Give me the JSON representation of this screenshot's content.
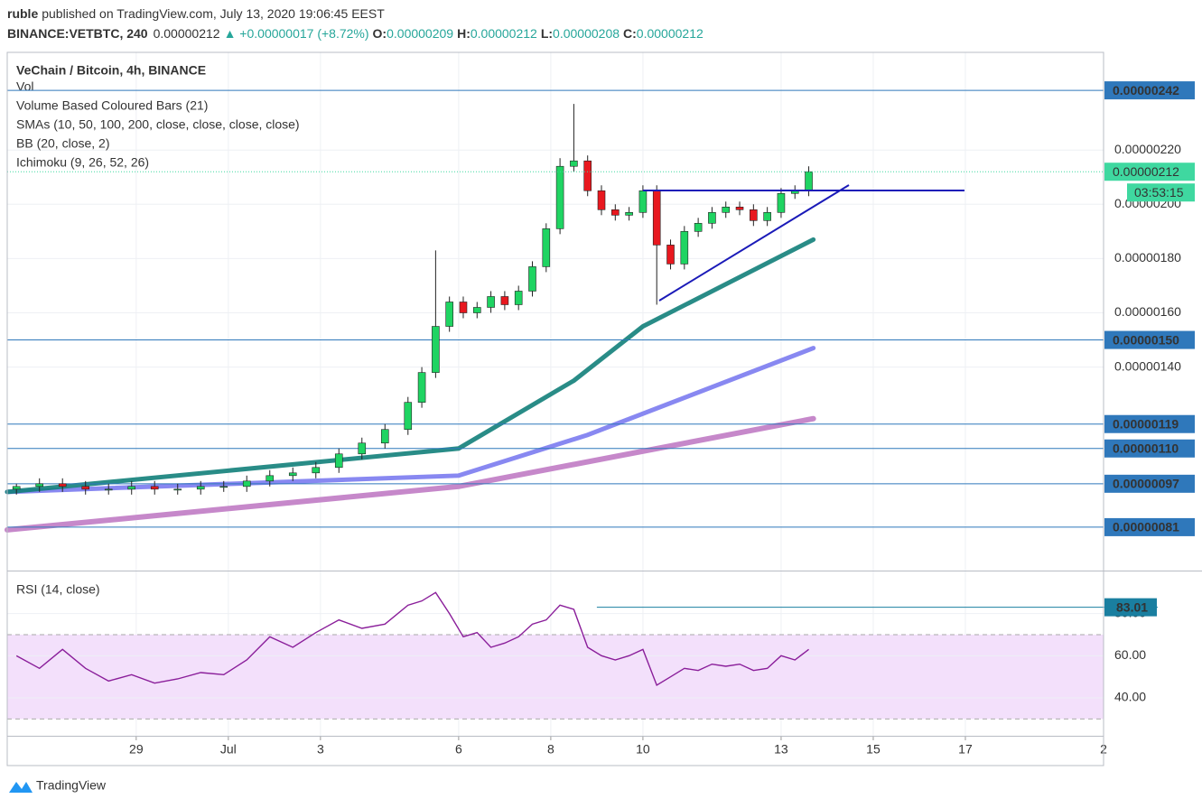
{
  "header": {
    "author": "ruble",
    "published": "published on TradingView.com, July 13, 2020 19:06:45 EEST",
    "symbol": "BINANCE:VETBTC, 240",
    "price": "0.00000212",
    "change": "▲ +0.00000017 (+8.72%)",
    "ohlc": [
      {
        "label": "O:",
        "value": "0.00000209"
      },
      {
        "label": "H:",
        "value": "0.00000212"
      },
      {
        "label": "L:",
        "value": "0.00000208"
      },
      {
        "label": "C:",
        "value": "0.00000212"
      }
    ]
  },
  "footer": {
    "brand": "TradingView"
  },
  "chart_data": [
    {
      "type": "candlestick",
      "title": "VeChain / Bitcoin, 4h, BINANCE",
      "legend_lines": [
        "Vol",
        "Volume Based Coloured Bars (21)",
        "SMAs (10, 50, 100, 200, close, close, close, close)",
        "BB (20, close, 2)",
        "Ichimoku (9, 26, 52, 26)"
      ],
      "up_color": "#1fd462",
      "down_color": "#e8181f",
      "x": [
        26.4,
        26.9,
        27.4,
        27.9,
        28.4,
        28.9,
        29.4,
        29.9,
        30.4,
        30.9,
        31.4,
        31.9,
        32.4,
        32.9,
        33.4,
        33.9,
        34.4,
        34.9,
        35.2,
        35.5,
        35.8,
        36.1,
        36.4,
        36.7,
        37.0,
        37.3,
        37.6,
        37.9,
        38.2,
        38.5,
        38.8,
        39.1,
        39.4,
        39.7,
        40.0,
        40.3,
        40.6,
        40.9,
        41.2,
        41.5,
        41.8,
        42.1,
        42.4,
        42.7,
        43.0,
        43.3,
        43.6
      ],
      "open": [
        9.5e-07,
        9.6e-07,
        9.7e-07,
        9.6e-07,
        9.5e-07,
        9.5e-07,
        9.6e-07,
        9.5e-07,
        9.5e-07,
        9.6e-07,
        9.6e-07,
        9.8e-07,
        1e-06,
        1.01e-06,
        1.03e-06,
        1.08e-06,
        1.12e-06,
        1.17e-06,
        1.27e-06,
        1.38e-06,
        1.55e-06,
        1.64e-06,
        1.6e-06,
        1.62e-06,
        1.66e-06,
        1.63e-06,
        1.68e-06,
        1.77e-06,
        1.91e-06,
        2.14e-06,
        2.16e-06,
        2.05e-06,
        1.98e-06,
        1.96e-06,
        1.97e-06,
        2.05e-06,
        1.85e-06,
        1.78e-06,
        1.9e-06,
        1.93e-06,
        1.97e-06,
        1.99e-06,
        1.98e-06,
        1.94e-06,
        1.97e-06,
        2.04e-06,
        2.05e-06
      ],
      "high": [
        9.7e-07,
        9.9e-07,
        9.9e-07,
        9.8e-07,
        9.7e-07,
        9.8e-07,
        9.8e-07,
        9.7e-07,
        9.8e-07,
        9.8e-07,
        1e-06,
        1.02e-06,
        1.03e-06,
        1.05e-06,
        1.1e-06,
        1.14e-06,
        1.19e-06,
        1.29e-06,
        1.4e-06,
        1.83e-06,
        1.66e-06,
        1.66e-06,
        1.64e-06,
        1.68e-06,
        1.68e-06,
        1.7e-06,
        1.79e-06,
        1.93e-06,
        2.17e-06,
        2.37e-06,
        2.18e-06,
        2.07e-06,
        2e-06,
        1.99e-06,
        2.07e-06,
        2.07e-06,
        1.87e-06,
        1.92e-06,
        1.95e-06,
        1.99e-06,
        2.01e-06,
        2.01e-06,
        2e-06,
        1.99e-06,
        2.06e-06,
        2.07e-06,
        2.14e-06
      ],
      "low": [
        9.3e-07,
        9.4e-07,
        9.4e-07,
        9.3e-07,
        9.3e-07,
        9.3e-07,
        9.3e-07,
        9.3e-07,
        9.3e-07,
        9.4e-07,
        9.4e-07,
        9.6e-07,
        9.8e-07,
        9.9e-07,
        1.01e-06,
        1.06e-06,
        1.1e-06,
        1.15e-06,
        1.25e-06,
        1.36e-06,
        1.53e-06,
        1.58e-06,
        1.58e-06,
        1.6e-06,
        1.61e-06,
        1.61e-06,
        1.66e-06,
        1.75e-06,
        1.89e-06,
        2.12e-06,
        2.03e-06,
        1.96e-06,
        1.94e-06,
        1.94e-06,
        1.95e-06,
        1.63e-06,
        1.76e-06,
        1.76e-06,
        1.88e-06,
        1.91e-06,
        1.95e-06,
        1.96e-06,
        1.92e-06,
        1.92e-06,
        1.95e-06,
        2.02e-06,
        2.03e-06
      ],
      "close": [
        9.6e-07,
        9.7e-07,
        9.6e-07,
        9.5e-07,
        9.5e-07,
        9.6e-07,
        9.5e-07,
        9.5e-07,
        9.6e-07,
        9.6e-07,
        9.8e-07,
        1e-06,
        1.01e-06,
        1.03e-06,
        1.08e-06,
        1.12e-06,
        1.17e-06,
        1.27e-06,
        1.38e-06,
        1.55e-06,
        1.64e-06,
        1.6e-06,
        1.62e-06,
        1.66e-06,
        1.63e-06,
        1.68e-06,
        1.77e-06,
        1.91e-06,
        2.14e-06,
        2.16e-06,
        2.05e-06,
        1.98e-06,
        1.96e-06,
        1.97e-06,
        2.05e-06,
        1.85e-06,
        1.78e-06,
        1.9e-06,
        1.93e-06,
        1.97e-06,
        1.99e-06,
        1.98e-06,
        1.94e-06,
        1.97e-06,
        2.04e-06,
        2.05e-06,
        2.12e-06
      ],
      "overlays": [
        {
          "color": "#c07bc4",
          "width": 6,
          "x": [
            26.2,
            36,
            43.7
          ],
          "values": [
            8e-07,
            9.6e-07,
            1.21e-06
          ]
        },
        {
          "color": "#7b7bf0",
          "width": 5,
          "x": [
            26.2,
            36,
            38.8,
            43.7
          ],
          "values": [
            9.4e-07,
            1e-06,
            1.15e-06,
            1.47e-06
          ]
        },
        {
          "color": "#12807a",
          "width": 5,
          "x": [
            26.2,
            36,
            38.5,
            40,
            43.7
          ],
          "values": [
            9.4e-07,
            1.1e-06,
            1.35e-06,
            1.55e-06,
            1.87e-06
          ]
        }
      ],
      "xlim": [
        26.2,
        50
      ],
      "xticks": [
        29,
        {
          "value": 31,
          "label": "Jul"
        },
        {
          "value": 33,
          "label": "3"
        },
        {
          "value": 36,
          "label": "6"
        },
        {
          "value": 38,
          "label": "8"
        },
        {
          "value": 40,
          "label": "10"
        },
        {
          "value": 43,
          "label": "13"
        },
        {
          "value": 45,
          "label": "15"
        },
        {
          "value": 47,
          "label": "17"
        },
        {
          "value": 50,
          "label": "2"
        }
      ],
      "ylim": [
        6.5e-07,
        2.56e-06
      ],
      "yticks": [
        {
          "value": 1.4e-06,
          "label": "0.00000140"
        },
        {
          "value": 1.6e-06,
          "label": "0.00000160"
        },
        {
          "value": 1.8e-06,
          "label": "0.00000180"
        },
        {
          "value": 2e-06,
          "label": "0.00000200"
        },
        {
          "value": 2.2e-06,
          "label": "0.00000220"
        }
      ],
      "levels": [
        {
          "value": 2.42e-06,
          "label": "0.00000242"
        },
        {
          "value": 1.5e-06,
          "label": "0.00000150"
        },
        {
          "value": 1.19e-06,
          "label": "0.00000119"
        },
        {
          "value": 1.1e-06,
          "label": "0.00000110"
        },
        {
          "value": 9.7e-07,
          "label": "0.00000097"
        },
        {
          "value": 8.1e-07,
          "label": "0.00000081"
        }
      ],
      "level_color": "#2f78bb",
      "last_price": {
        "value": 2.12e-06,
        "label": "0.00000212",
        "countdown": "03:53:15"
      },
      "last_color": "#3fd8a0",
      "grid": true
    },
    {
      "type": "line",
      "title": "RSI (14, close)",
      "color": "#8a1e9a",
      "x": [
        26.4,
        26.9,
        27.4,
        27.9,
        28.4,
        28.9,
        29.4,
        29.9,
        30.4,
        30.9,
        31.4,
        31.9,
        32.4,
        32.9,
        33.4,
        33.9,
        34.4,
        34.9,
        35.2,
        35.5,
        35.8,
        36.1,
        36.4,
        36.7,
        37.0,
        37.3,
        37.6,
        37.9,
        38.2,
        38.5,
        38.8,
        39.1,
        39.4,
        39.7,
        40.0,
        40.3,
        40.6,
        40.9,
        41.2,
        41.5,
        41.8,
        42.1,
        42.4,
        42.7,
        43.0,
        43.3,
        43.6
      ],
      "values": [
        60,
        54,
        63,
        54,
        48,
        51,
        47,
        49,
        52,
        51,
        58,
        69,
        64,
        71,
        77,
        73,
        75,
        84,
        86,
        90,
        80,
        69,
        71,
        64,
        66,
        69,
        75,
        77,
        84,
        82,
        64,
        60,
        58,
        60,
        63,
        46,
        50,
        54,
        53,
        56,
        55,
        56,
        53,
        54,
        60,
        58,
        63
      ],
      "ylim": [
        22,
        100
      ],
      "yticks": [
        {
          "value": 40,
          "label": "40.00"
        },
        {
          "value": 60,
          "label": "60.00"
        },
        {
          "value": 80,
          "label": "80.00"
        }
      ],
      "band": [
        30,
        70
      ],
      "band_color": "#f3e0fb",
      "level": {
        "value": 83.01,
        "x": 39
      },
      "level_color": "#1a7fa0",
      "grid": true
    }
  ]
}
